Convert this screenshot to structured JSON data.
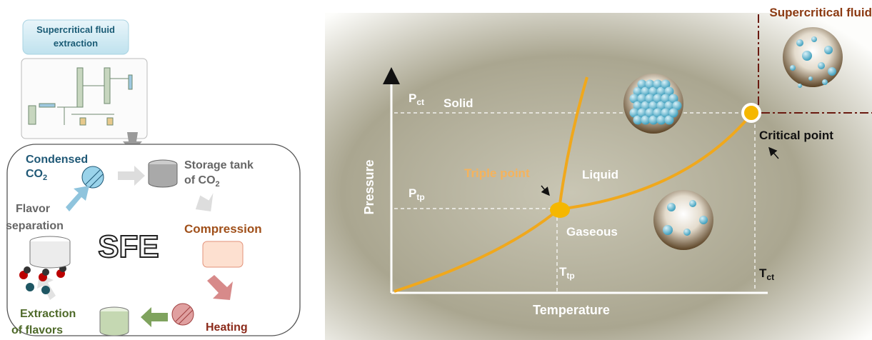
{
  "process": {
    "title": "Supercritical fluid extraction",
    "steps": {
      "condensed": {
        "main": "Condensed",
        "line2": "CO",
        "sub": "2"
      },
      "storage": {
        "main": "Storage tank",
        "line2": "of CO",
        "sub": "2"
      },
      "compression": "Compression",
      "heating": "Heating",
      "extraction": {
        "main": "Extraction",
        "line2": "of flavors"
      },
      "separation": {
        "main": "Flavor",
        "line2": "separation"
      }
    },
    "center": "SFE"
  },
  "phase_diagram": {
    "regions": {
      "solid": "Solid",
      "liquid": "Liquid",
      "gaseous": "Gaseous",
      "supercritical": "Supercritical fluid"
    },
    "points": {
      "triple": "Triple point",
      "critical": "Critical point"
    },
    "axes": {
      "y": "Pressure",
      "x": "Temperature"
    },
    "ticks": {
      "p_ct": {
        "main": "P",
        "sub": "ct"
      },
      "p_tp": {
        "main": "P",
        "sub": "tp"
      },
      "t_tp": {
        "main": "T",
        "sub": "tp"
      },
      "t_ct": {
        "main": "T",
        "sub": "ct"
      }
    }
  }
}
